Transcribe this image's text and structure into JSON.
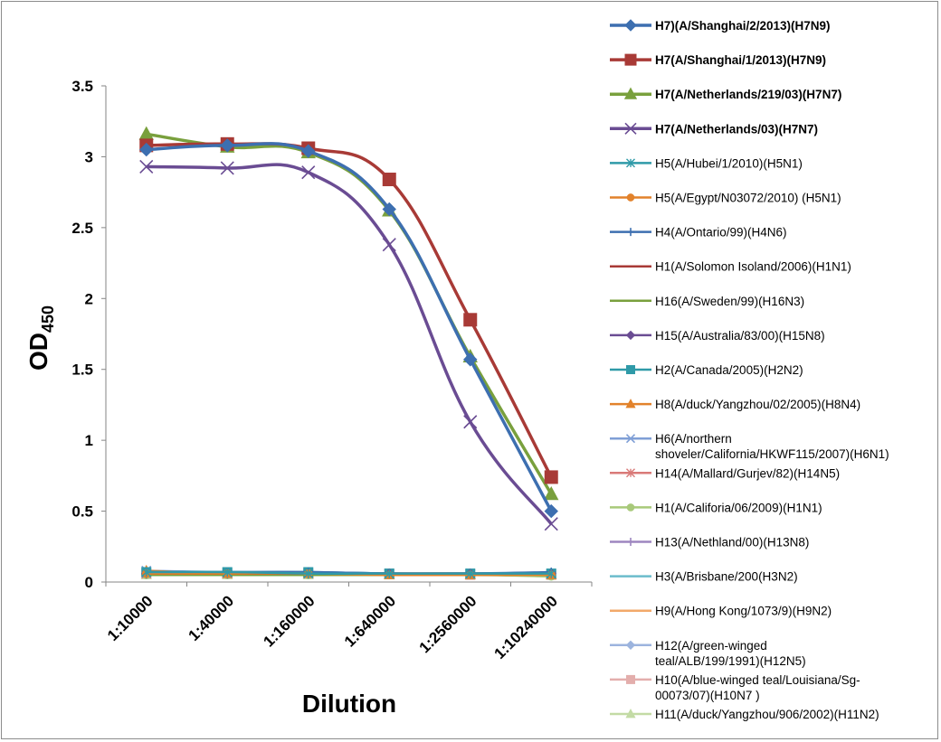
{
  "chart_data": {
    "type": "line",
    "title": "",
    "xlabel": "Dilution",
    "ylabel_main": "OD",
    "ylabel_sub": "450",
    "ylim": [
      0,
      3.5
    ],
    "yticks": [
      "0",
      "0.5",
      "1",
      "1.5",
      "2",
      "2.5",
      "3",
      "3.5"
    ],
    "categories": [
      "1:10000",
      "1:40000",
      "1:160000",
      "1:640000",
      "1:2560000",
      "1:10240000"
    ],
    "grid": false,
    "legend_position": "right",
    "series": [
      {
        "name": "H7)(A/Shanghai/2/2013)(H7N9)",
        "legend_lines": [
          "H7)(A/Shanghai/2/2013)(H7N9)"
        ],
        "bold": true,
        "color": "#3d6fb0",
        "marker": "diamond",
        "values": [
          3.05,
          3.08,
          3.04,
          2.63,
          1.57,
          0.5
        ]
      },
      {
        "name": "H7(A/Shanghai/1/2013)(H7N9)",
        "legend_lines": [
          "H7(A/Shanghai/1/2013)(H7N9)"
        ],
        "bold": true,
        "color": "#a83a36",
        "marker": "square",
        "values": [
          3.08,
          3.09,
          3.06,
          2.84,
          1.85,
          0.74
        ]
      },
      {
        "name": "H7(A/Netherlands/219/03)(H7N7)",
        "legend_lines": [
          "H7(A/Netherlands/219/03)(H7N7)"
        ],
        "bold": true,
        "color": "#79a03d",
        "marker": "triangle",
        "values": [
          3.16,
          3.07,
          3.03,
          2.62,
          1.59,
          0.62
        ]
      },
      {
        "name": "H7(A/Netherlands/03)(H7N7)",
        "legend_lines": [
          "H7(A/Netherlands/03)(H7N7)"
        ],
        "bold": true,
        "color": "#6a4c93",
        "marker": "x",
        "values": [
          2.93,
          2.92,
          2.89,
          2.38,
          1.13,
          0.41
        ]
      },
      {
        "name": "H5(A/Hubei/1/2010)(H5N1)",
        "legend_lines": [
          "H5(A/Hubei/1/2010)(H5N1)"
        ],
        "bold": false,
        "color": "#2f9aa8",
        "marker": "star",
        "values": [
          0.07,
          0.07,
          0.06,
          0.06,
          0.06,
          0.06
        ]
      },
      {
        "name": "H5(A/Egypt/N03072/2010) (H5N1)",
        "legend_lines": [
          "H5(A/Egypt/N03072/2010) (H5N1)"
        ],
        "bold": false,
        "color": "#e2822b",
        "marker": "circle",
        "values": [
          0.06,
          0.06,
          0.06,
          0.05,
          0.05,
          0.05
        ]
      },
      {
        "name": "H4(A/Ontario/99)(H4N6)",
        "legend_lines": [
          "H4(A/Ontario/99)(H4N6)"
        ],
        "bold": false,
        "color": "#3d6fb0",
        "marker": "plus",
        "values": [
          0.07,
          0.07,
          0.07,
          0.06,
          0.06,
          0.07
        ]
      },
      {
        "name": "H1(A/Solomon Isoland/2006)(H1N1)",
        "legend_lines": [
          "H1(A/Solomon Isoland/2006)(H1N1)"
        ],
        "bold": false,
        "color": "#a83a36",
        "marker": "none",
        "values": [
          0.06,
          0.06,
          0.06,
          0.06,
          0.06,
          0.06
        ]
      },
      {
        "name": "H16(A/Sweden/99)(H16N3)",
        "legend_lines": [
          "H16(A/Sweden/99)(H16N3)"
        ],
        "bold": false,
        "color": "#79a03d",
        "marker": "none",
        "values": [
          0.05,
          0.05,
          0.05,
          0.05,
          0.05,
          0.05
        ]
      },
      {
        "name": "H15(A/Australia/83/00)(H15N8)",
        "legend_lines": [
          "H15(A/Australia/83/00)(H15N8)"
        ],
        "bold": false,
        "color": "#6a4c93",
        "marker": "diamond",
        "values": [
          0.06,
          0.06,
          0.06,
          0.06,
          0.06,
          0.06
        ]
      },
      {
        "name": "H2(A/Canada/2005)(H2N2)",
        "legend_lines": [
          "H2(A/Canada/2005)(H2N2)"
        ],
        "bold": false,
        "color": "#2f9aa8",
        "marker": "square",
        "values": [
          0.07,
          0.07,
          0.07,
          0.06,
          0.06,
          0.06
        ]
      },
      {
        "name": "H8(A/duck/Yangzhou/02/2005)(H8N4)",
        "legend_lines": [
          "H8(A/duck/Yangzhou/02/2005)(H8N4)"
        ],
        "bold": false,
        "color": "#e2822b",
        "marker": "triangle",
        "values": [
          0.08,
          0.06,
          0.06,
          0.05,
          0.05,
          0.05
        ]
      },
      {
        "name": "H6(A/northern shoveler/California/HKWF115/2007)(H6N1)",
        "legend_lines": [
          "H6(A/northern",
          "shoveler/California/HKWF115/2007)(H6N1)"
        ],
        "bold": false,
        "color": "#7f9fd6",
        "marker": "x",
        "values": [
          0.08,
          0.07,
          0.07,
          0.06,
          0.06,
          0.06
        ]
      },
      {
        "name": "H14(A/Mallard/Gurjev/82)(H14N5)",
        "legend_lines": [
          "H14(A/Mallard/Gurjev/82)(H14N5)"
        ],
        "bold": false,
        "color": "#d97a78",
        "marker": "star",
        "values": [
          0.06,
          0.06,
          0.06,
          0.06,
          0.06,
          0.06
        ]
      },
      {
        "name": "H1(A/Califoria/06/2009)(H1N1)",
        "legend_lines": [
          "H1(A/Califoria/06/2009)(H1N1)"
        ],
        "bold": false,
        "color": "#a8c97a",
        "marker": "circle",
        "values": [
          0.05,
          0.05,
          0.05,
          0.05,
          0.05,
          0.04
        ]
      },
      {
        "name": "H13(A/Nethland/00)(H13N8)",
        "legend_lines": [
          "H13(A/Nethland/00)(H13N8)"
        ],
        "bold": false,
        "color": "#9d86bf",
        "marker": "plus",
        "values": [
          0.06,
          0.06,
          0.06,
          0.06,
          0.06,
          0.06
        ]
      },
      {
        "name": "H3(A/Brisbane/200(H3N2)",
        "legend_lines": [
          "H3(A/Brisbane/200(H3N2)"
        ],
        "bold": false,
        "color": "#6bbccc",
        "marker": "none",
        "values": [
          0.06,
          0.06,
          0.06,
          0.06,
          0.06,
          0.06
        ]
      },
      {
        "name": "H9(A/Hong Kong/1073/9)(H9N2)",
        "legend_lines": [
          "H9(A/Hong Kong/1073/9)(H9N2)"
        ],
        "bold": false,
        "color": "#f2a96a",
        "marker": "none",
        "values": [
          0.06,
          0.06,
          0.06,
          0.05,
          0.05,
          0.05
        ]
      },
      {
        "name": "H12(A/green-winged teal/ALB/199/1991)(H12N5)",
        "legend_lines": [
          "H12(A/green-winged",
          "teal/ALB/199/1991)(H12N5)"
        ],
        "bold": false,
        "color": "#9cb4de",
        "marker": "diamond",
        "values": [
          0.06,
          0.06,
          0.06,
          0.06,
          0.06,
          0.06
        ]
      },
      {
        "name": "H10(A/blue-winged teal/Louisiana/Sg-00073/07)(H10N7 )",
        "legend_lines": [
          "H10(A/blue-winged teal/Louisiana/Sg-",
          "00073/07)(H10N7 )"
        ],
        "bold": false,
        "color": "#e3aeac",
        "marker": "square",
        "values": [
          0.06,
          0.06,
          0.06,
          0.06,
          0.05,
          0.05
        ]
      },
      {
        "name": "H11(A/duck/Yangzhou/906/2002)(H11N2)",
        "legend_lines": [
          "H11(A/duck/Yangzhou/906/2002)(H11N2)"
        ],
        "bold": false,
        "color": "#c3dba5",
        "marker": "triangle",
        "values": [
          0.05,
          0.05,
          0.05,
          0.05,
          0.05,
          0.05
        ]
      }
    ]
  }
}
